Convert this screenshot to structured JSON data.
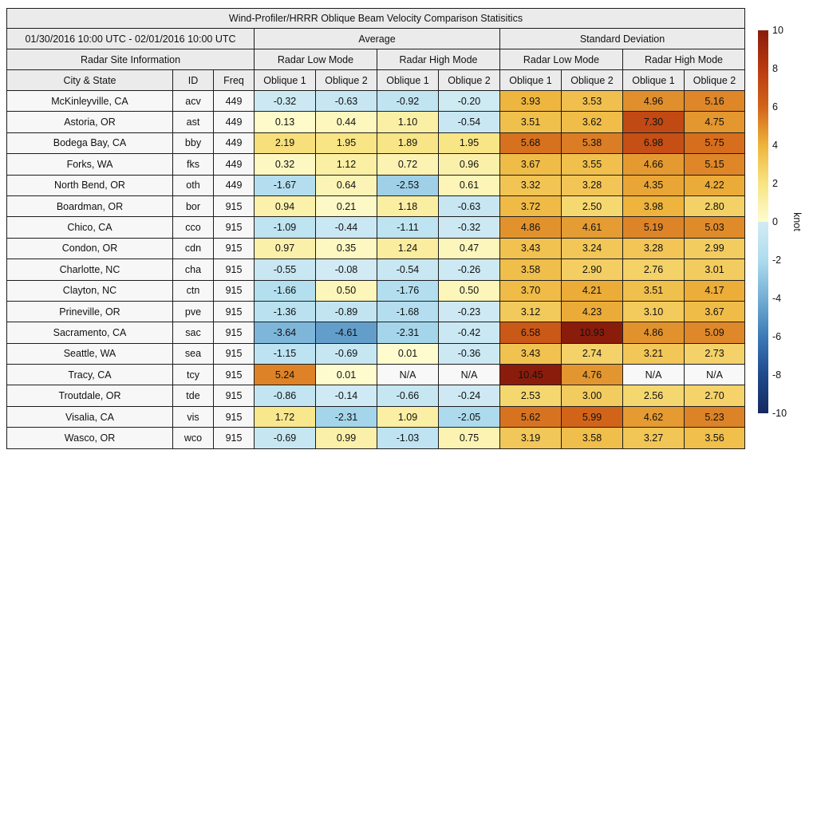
{
  "chart_data": {
    "type": "heatmap",
    "title": "Wind-Profiler/HRRR Oblique Beam Velocity Comparison Statisitics",
    "date_range": "01/30/2016 10:00 UTC - 02/01/2016 10:00 UTC",
    "group_headers": [
      "Average",
      "Standard Deviation"
    ],
    "site_info_header": "Radar Site Information",
    "mode_headers": [
      "Radar Low Mode",
      "Radar High Mode",
      "Radar Low Mode",
      "Radar High Mode"
    ],
    "col_headers": [
      "City & State",
      "ID",
      "Freq",
      "Oblique 1",
      "Oblique 2",
      "Oblique 1",
      "Oblique 2",
      "Oblique 1",
      "Oblique 2",
      "Oblique 1",
      "Oblique 2"
    ],
    "rows": [
      {
        "city": "McKinleyville, CA",
        "id": "acv",
        "freq": "449",
        "values": [
          "-0.32",
          "-0.63",
          "-0.92",
          "-0.20",
          "3.93",
          "3.53",
          "4.96",
          "5.16"
        ]
      },
      {
        "city": "Astoria, OR",
        "id": "ast",
        "freq": "449",
        "values": [
          "0.13",
          "0.44",
          "1.10",
          "-0.54",
          "3.51",
          "3.62",
          "7.30",
          "4.75"
        ]
      },
      {
        "city": "Bodega Bay, CA",
        "id": "bby",
        "freq": "449",
        "values": [
          "2.19",
          "1.95",
          "1.89",
          "1.95",
          "5.68",
          "5.38",
          "6.98",
          "5.75"
        ]
      },
      {
        "city": "Forks, WA",
        "id": "fks",
        "freq": "449",
        "values": [
          "0.32",
          "1.12",
          "0.72",
          "0.96",
          "3.67",
          "3.55",
          "4.66",
          "5.15"
        ]
      },
      {
        "city": "North Bend, OR",
        "id": "oth",
        "freq": "449",
        "values": [
          "-1.67",
          "0.64",
          "-2.53",
          "0.61",
          "3.32",
          "3.28",
          "4.35",
          "4.22"
        ]
      },
      {
        "city": "Boardman, OR",
        "id": "bor",
        "freq": "915",
        "values": [
          "0.94",
          "0.21",
          "1.18",
          "-0.63",
          "3.72",
          "2.50",
          "3.98",
          "2.80"
        ]
      },
      {
        "city": "Chico, CA",
        "id": "cco",
        "freq": "915",
        "values": [
          "-1.09",
          "-0.44",
          "-1.11",
          "-0.32",
          "4.86",
          "4.61",
          "5.19",
          "5.03"
        ]
      },
      {
        "city": "Condon, OR",
        "id": "cdn",
        "freq": "915",
        "values": [
          "0.97",
          "0.35",
          "1.24",
          "0.47",
          "3.43",
          "3.24",
          "3.28",
          "2.99"
        ]
      },
      {
        "city": "Charlotte, NC",
        "id": "cha",
        "freq": "915",
        "values": [
          "-0.55",
          "-0.08",
          "-0.54",
          "-0.26",
          "3.58",
          "2.90",
          "2.76",
          "3.01"
        ]
      },
      {
        "city": "Clayton, NC",
        "id": "ctn",
        "freq": "915",
        "values": [
          "-1.66",
          "0.50",
          "-1.76",
          "0.50",
          "3.70",
          "4.21",
          "3.51",
          "4.17"
        ]
      },
      {
        "city": "Prineville, OR",
        "id": "pve",
        "freq": "915",
        "values": [
          "-1.36",
          "-0.89",
          "-1.68",
          "-0.23",
          "3.12",
          "4.23",
          "3.10",
          "3.67"
        ]
      },
      {
        "city": "Sacramento, CA",
        "id": "sac",
        "freq": "915",
        "values": [
          "-3.64",
          "-4.61",
          "-2.31",
          "-0.42",
          "6.58",
          "10.93",
          "4.86",
          "5.09"
        ]
      },
      {
        "city": "Seattle, WA",
        "id": "sea",
        "freq": "915",
        "values": [
          "-1.15",
          "-0.69",
          "0.01",
          "-0.36",
          "3.43",
          "2.74",
          "3.21",
          "2.73"
        ]
      },
      {
        "city": "Tracy, CA",
        "id": "tcy",
        "freq": "915",
        "values": [
          "5.24",
          "0.01",
          "N/A",
          "N/A",
          "10.45",
          "4.76",
          "N/A",
          "N/A"
        ]
      },
      {
        "city": "Troutdale, OR",
        "id": "tde",
        "freq": "915",
        "values": [
          "-0.86",
          "-0.14",
          "-0.66",
          "-0.24",
          "2.53",
          "3.00",
          "2.56",
          "2.70"
        ]
      },
      {
        "city": "Visalia, CA",
        "id": "vis",
        "freq": "915",
        "values": [
          "1.72",
          "-2.31",
          "1.09",
          "-2.05",
          "5.62",
          "5.99",
          "4.62",
          "5.23"
        ]
      },
      {
        "city": "Wasco, OR",
        "id": "wco",
        "freq": "915",
        "values": [
          "-0.69",
          "0.99",
          "-1.03",
          "0.75",
          "3.19",
          "3.58",
          "3.27",
          "3.56"
        ]
      }
    ],
    "colorbar": {
      "label": "knot",
      "min": -10,
      "max": 10,
      "ticks": [
        10,
        8,
        6,
        4,
        2,
        0,
        -2,
        -4,
        -6,
        -8,
        -10
      ]
    },
    "colormap": {
      "pos": [
        [
          0,
          "#fefcce"
        ],
        [
          2,
          "#f8e483"
        ],
        [
          4,
          "#eeb43c"
        ],
        [
          6,
          "#d2641a"
        ],
        [
          8,
          "#b83a10"
        ],
        [
          10,
          "#8a1c0c"
        ]
      ],
      "neg": [
        [
          0,
          "#d2ebf4"
        ],
        [
          2,
          "#aedcee"
        ],
        [
          4,
          "#74aed4"
        ],
        [
          6,
          "#3c7ab6"
        ],
        [
          8,
          "#1f4a8c"
        ],
        [
          10,
          "#15295f"
        ]
      ],
      "na_color": "#f8f8f8"
    }
  },
  "styles": {
    "header_bg": "#ebebeb",
    "rowhead_bg": "#f7f7f7",
    "border_color": "#1c1c1c"
  }
}
